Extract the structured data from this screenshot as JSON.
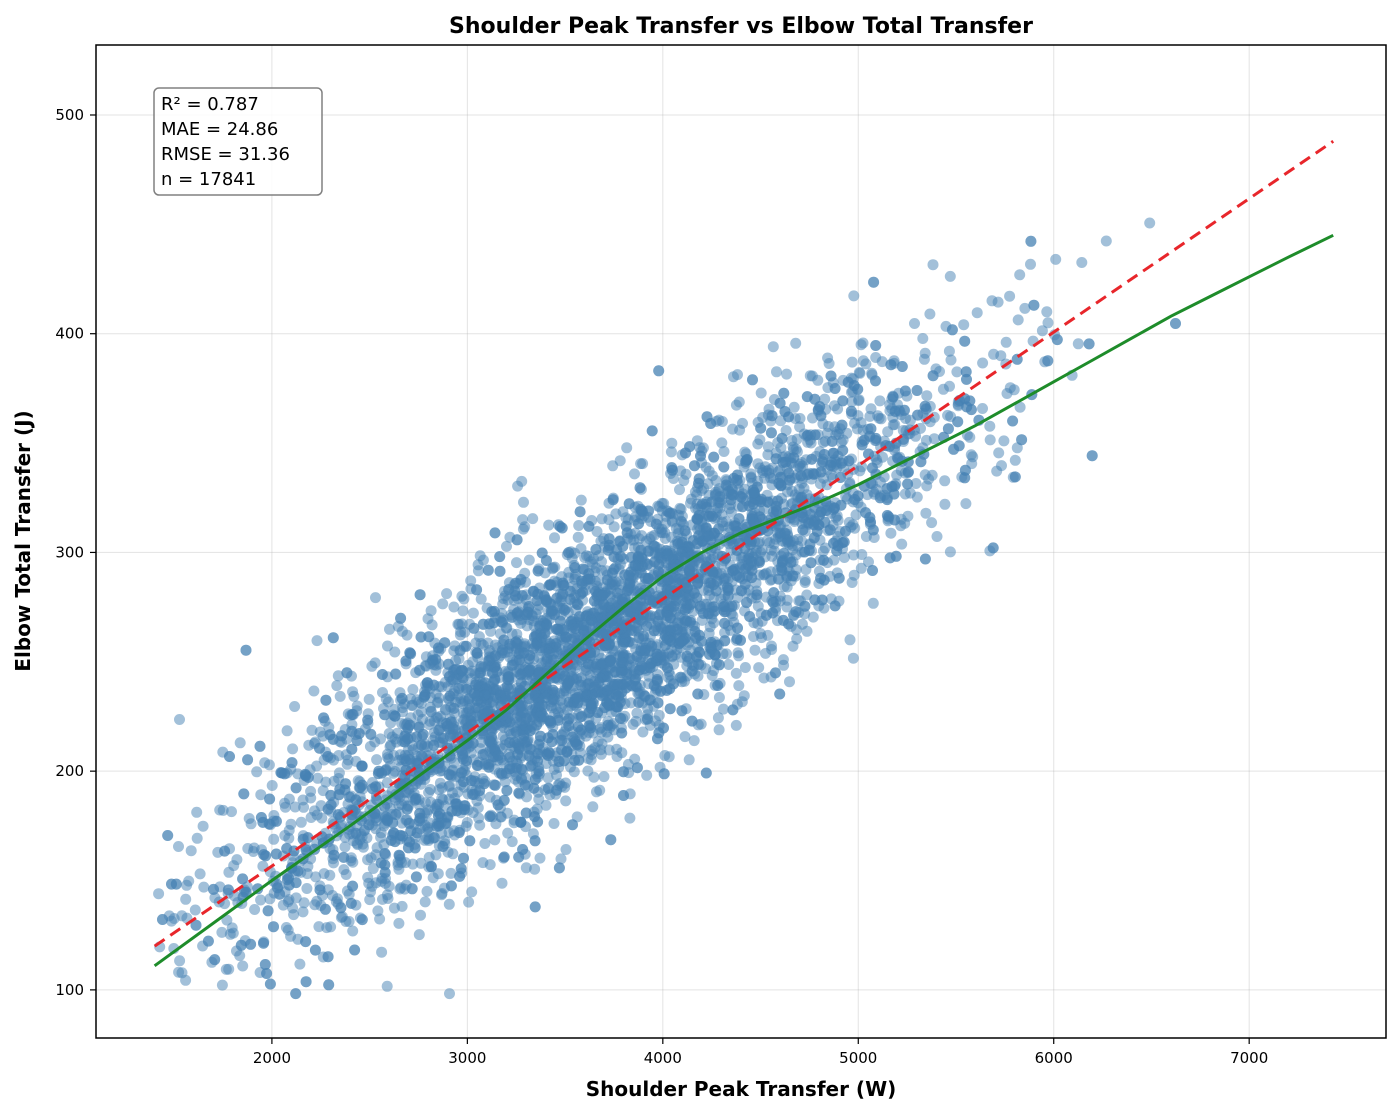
{
  "chart_data": {
    "type": "scatter",
    "title": "Shoulder Peak Transfer vs Elbow Total Transfer",
    "xlabel": "Shoulder Peak Transfer (W)",
    "ylabel": "Elbow Total Transfer (J)",
    "xlim": [
      1100,
      7700
    ],
    "ylim": [
      78,
      532
    ],
    "xticks": [
      2000,
      3000,
      4000,
      5000,
      6000,
      7000
    ],
    "yticks": [
      100,
      200,
      300,
      400,
      500
    ],
    "grid": true,
    "stats": [
      "R² = 0.787",
      "MAE = 24.86",
      "RMSE = 31.36",
      "n = 17841"
    ],
    "scatter_color": "#4682b4",
    "scatter_alpha": 0.5,
    "scatter_trend": {
      "slope": 0.0602,
      "intercept": 36,
      "x_range": [
        1400,
        7430
      ],
      "residual_sd": 30
    },
    "identity_line": {
      "color": "#e8262b",
      "style": "dashed",
      "x": [
        1400,
        7430
      ],
      "y": [
        120,
        488
      ]
    },
    "trend_curve": {
      "color": "#1e8c2a",
      "style": "solid",
      "x": [
        1400,
        1800,
        2000,
        2400,
        2800,
        3000,
        3200,
        3400,
        3600,
        3800,
        4000,
        4200,
        4400,
        4600,
        4800,
        5000,
        5200,
        5400,
        5600,
        5800,
        6000,
        6200,
        6400,
        6600,
        6800,
        7000,
        7200,
        7430
      ],
      "y": [
        111,
        137,
        150,
        175,
        201,
        214,
        228,
        244,
        260,
        275,
        289,
        300,
        309,
        316,
        323,
        331,
        340,
        349,
        358,
        368,
        378,
        388,
        398,
        408,
        417,
        426,
        435,
        445
      ]
    }
  }
}
